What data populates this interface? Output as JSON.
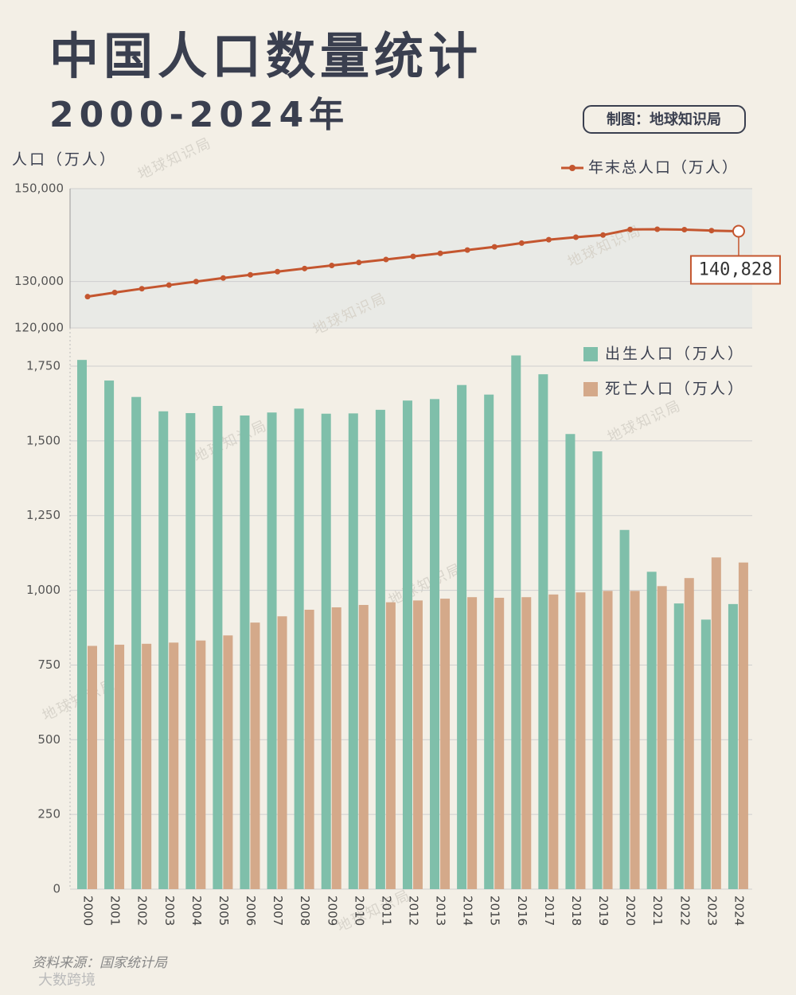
{
  "chart_data": {
    "type": "bar",
    "title": "中国人口数量统计",
    "subtitle": "2000-2024年",
    "credit": "制图：地球知识局",
    "y_label": "人口（万人）",
    "source": "资料来源：国家统计局",
    "watermark": "地球知识局",
    "logo_watermark": "大数跨境",
    "legend": "top-right",
    "grid": true,
    "categories": [
      "2000",
      "2001",
      "2002",
      "2003",
      "2004",
      "2005",
      "2006",
      "2007",
      "2008",
      "2009",
      "2010",
      "2011",
      "2012",
      "2013",
      "2014",
      "2015",
      "2016",
      "2017",
      "2018",
      "2019",
      "2020",
      "2021",
      "2022",
      "2023",
      "2024"
    ],
    "series": [
      {
        "name": "年末总人口（万人）",
        "type": "line",
        "axis": "y2",
        "color": "#c4562f",
        "values": [
          126743,
          127627,
          128453,
          129227,
          129988,
          130756,
          131448,
          132129,
          132802,
          133450,
          134091,
          134735,
          135404,
          136072,
          136782,
          137462,
          138271,
          139008,
          139538,
          140005,
          141212,
          141260,
          141175,
          140967,
          140828
        ],
        "value_labels": [
          null,
          null,
          null,
          null,
          null,
          null,
          null,
          null,
          null,
          null,
          null,
          null,
          null,
          null,
          null,
          null,
          null,
          null,
          null,
          null,
          null,
          null,
          null,
          null,
          "140,828"
        ]
      },
      {
        "name": "出生人口（万人）",
        "type": "bar",
        "color": "#7fbfaa",
        "values": [
          1771,
          1702,
          1647,
          1599,
          1593,
          1617,
          1585,
          1595,
          1608,
          1591,
          1592,
          1604,
          1635,
          1640,
          1687,
          1655,
          1786,
          1723,
          1523,
          1465,
          1202,
          1062,
          956,
          902,
          954
        ]
      },
      {
        "name": "死亡人口（万人）",
        "type": "bar",
        "color": "#d4a98a",
        "values": [
          814,
          818,
          821,
          825,
          832,
          849,
          892,
          913,
          935,
          943,
          951,
          960,
          966,
          972,
          977,
          975,
          977,
          986,
          993,
          998,
          998,
          1014,
          1041,
          1110,
          1093
        ]
      }
    ],
    "ylim": [
      0,
      1830
    ],
    "yticks": [
      0,
      250,
      500,
      750,
      {
        "value": 1000,
        "label": "1,000"
      },
      {
        "value": 1250,
        "label": "1,250"
      },
      {
        "value": 1500,
        "label": "1,500"
      },
      {
        "value": 1750,
        "label": "1,750"
      }
    ],
    "y2lim": [
      120000,
      150000
    ],
    "y2ticks": [
      {
        "value": 120000,
        "label": "120,000"
      },
      {
        "value": 130000,
        "label": "130,000"
      },
      {
        "value": 150000,
        "label": "150,000"
      }
    ]
  }
}
